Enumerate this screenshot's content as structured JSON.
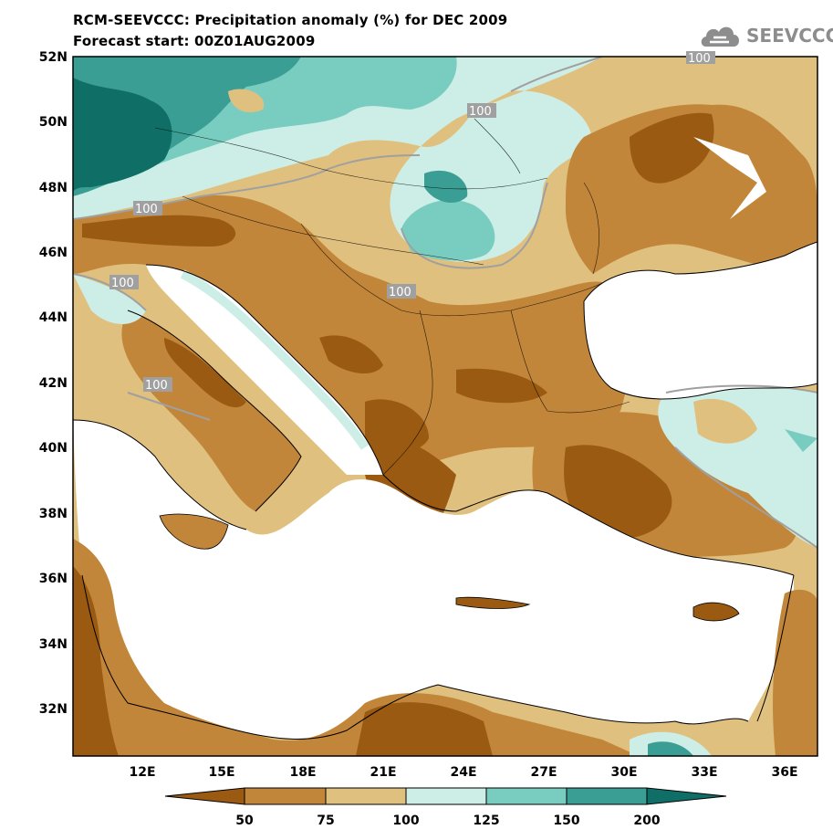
{
  "title": {
    "line1": "RCM-SEEVCCC: Precipitation anomaly (%) for DEC 2009",
    "line2": "Forecast start: 00Z01AUG2009"
  },
  "logo": {
    "text": "SEEVCCC",
    "icon": "cloud-logo-icon",
    "color": "#8d8d8d"
  },
  "map": {
    "lat_labels": [
      "52N",
      "50N",
      "48N",
      "46N",
      "44N",
      "42N",
      "40N",
      "38N",
      "36N",
      "34N",
      "32N"
    ],
    "lon_labels": [
      "12E",
      "15E",
      "18E",
      "21E",
      "24E",
      "27E",
      "30E",
      "33E",
      "36E"
    ],
    "contour_label": "100",
    "sea_color": "#ffffff"
  },
  "legend": {
    "ticks": [
      "50",
      "75",
      "100",
      "125",
      "150",
      "200"
    ],
    "colors": [
      "#9a5a12",
      "#c1863a",
      "#e0c07e",
      "#cdeee6",
      "#79cdc0",
      "#3a9e94",
      "#0f6f67"
    ]
  }
}
